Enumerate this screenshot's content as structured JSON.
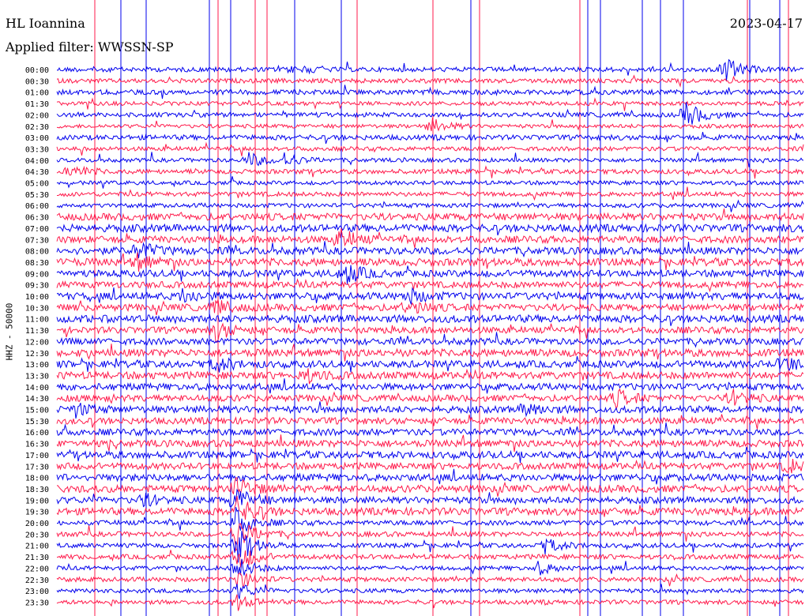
{
  "header": {
    "station": "HL Ioannina",
    "filter": "Applied filter: WWSSN-SP",
    "date": "2023-04-17"
  },
  "colors": {
    "blue": "#0000ee",
    "red": "#ff1a4b",
    "background": "#ffffff"
  },
  "chart_data": {
    "type": "line",
    "title": "HL Ioannina",
    "subtitle": "Applied filter: WWSSN-SP",
    "ylabel": "HHZ - 50000",
    "tick_labels": [
      "00:00",
      "00:30",
      "01:00",
      "01:30",
      "02:00",
      "02:30",
      "03:00",
      "03:30",
      "04:00",
      "04:30",
      "05:00",
      "05:30",
      "06:00",
      "06:30",
      "07:00",
      "07:30",
      "08:00",
      "08:30",
      "09:00",
      "09:30",
      "10:00",
      "10:30",
      "11:00",
      "11:30",
      "12:00",
      "12:30",
      "13:00",
      "13:30",
      "14:00",
      "14:30",
      "15:00",
      "15:30",
      "16:00",
      "16:30",
      "17:00",
      "17:30",
      "18:00",
      "18:30",
      "19:00",
      "19:30",
      "20:00",
      "20:30",
      "21:00",
      "21:30",
      "22:00",
      "22:30",
      "23:00",
      "23:30"
    ],
    "trace_colors": [
      "blue",
      "red"
    ],
    "description_of_events": [
      {
        "trace": "00:00",
        "type": "local event"
      },
      {
        "trace": "02:00",
        "type": "local event"
      },
      {
        "trace": "20:30",
        "type": "strong event"
      }
    ]
  }
}
